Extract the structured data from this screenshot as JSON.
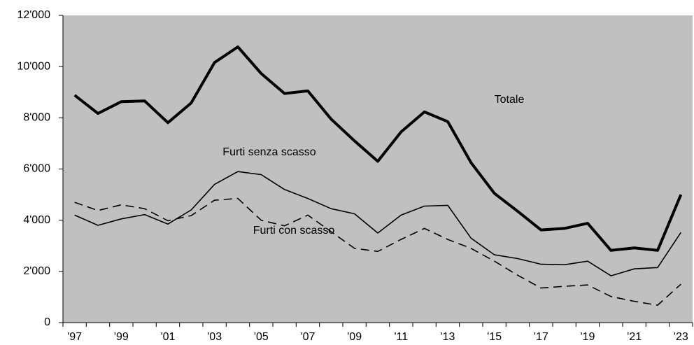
{
  "chart_data": {
    "type": "line",
    "categories": [
      "'97",
      null,
      "'99",
      null,
      "'01",
      null,
      "'03",
      null,
      "'05",
      null,
      "'07",
      null,
      "'09",
      null,
      "'11",
      null,
      "'13",
      null,
      "'15",
      null,
      "'17",
      null,
      "'19",
      null,
      "'21",
      null,
      "'23"
    ],
    "series": [
      {
        "name": "Totale",
        "color": "#000000",
        "width": 4,
        "dash": false,
        "values": [
          8880,
          8170,
          8630,
          8660,
          7810,
          8580,
          10160,
          10770,
          9730,
          8950,
          9050,
          7950,
          7100,
          6300,
          7450,
          8230,
          7850,
          6250,
          5050,
          4350,
          3620,
          3680,
          3880,
          2820,
          2920,
          2820,
          5000
        ]
      },
      {
        "name": "Furti senza scasso",
        "color": "#000000",
        "width": 1.6,
        "dash": false,
        "values": [
          4200,
          3800,
          4050,
          4220,
          3850,
          4400,
          5400,
          5900,
          5780,
          5200,
          4850,
          4450,
          4250,
          3500,
          4200,
          4550,
          4580,
          3300,
          2650,
          2500,
          2280,
          2260,
          2400,
          1830,
          2100,
          2150,
          3520
        ]
      },
      {
        "name": "Furti con scasso",
        "color": "#000000",
        "width": 1.6,
        "dash": true,
        "values": [
          4700,
          4380,
          4600,
          4450,
          3980,
          4180,
          4780,
          4850,
          4000,
          3780,
          4200,
          3550,
          2900,
          2780,
          3250,
          3680,
          3250,
          2900,
          2400,
          1850,
          1350,
          1420,
          1470,
          1020,
          830,
          680,
          1500
        ]
      }
    ],
    "ylim": [
      0,
      12000
    ],
    "yticks": [
      0,
      {
        "value": 2000,
        "label": "2'000"
      },
      {
        "value": 4000,
        "label": "4'000"
      },
      {
        "value": 6000,
        "label": "6'000"
      },
      {
        "value": 8000,
        "label": "8'000"
      },
      {
        "value": 10000,
        "label": "10'000"
      },
      {
        "value": 12000,
        "label": "12'000"
      }
    ],
    "grid": false,
    "background": "#c0c0c0"
  }
}
